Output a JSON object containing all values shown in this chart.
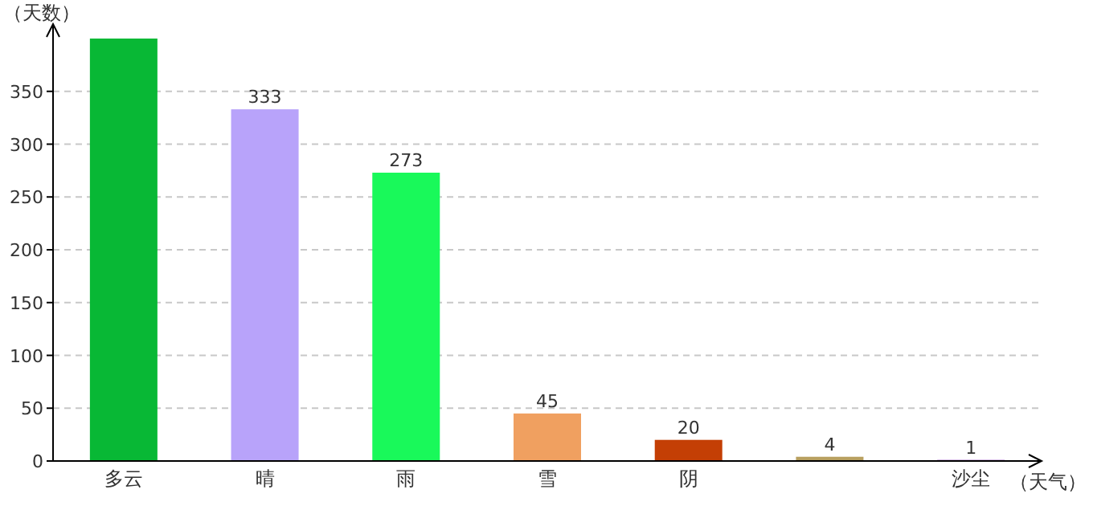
{
  "chart_data": {
    "type": "bar",
    "xlabel": "（天气）",
    "ylabel": "（天数）",
    "categories": [
      "多云",
      "晴",
      "雨",
      "雪",
      "阴",
      null,
      "沙尘"
    ],
    "values": [
      400,
      333,
      273,
      45,
      20,
      4,
      1
    ],
    "value_labels": [
      null,
      "333",
      "273",
      "45",
      "20",
      "4",
      "1"
    ],
    "colors": [
      "#08b835",
      "#b8a3fa",
      "#19f95a",
      "#f0a060",
      "#c43f05",
      "#b8a060",
      "#8030b0"
    ],
    "ylim": [
      0,
      400
    ],
    "yticks": [
      0,
      50,
      100,
      150,
      200,
      250,
      300,
      350
    ],
    "grid": "y"
  }
}
